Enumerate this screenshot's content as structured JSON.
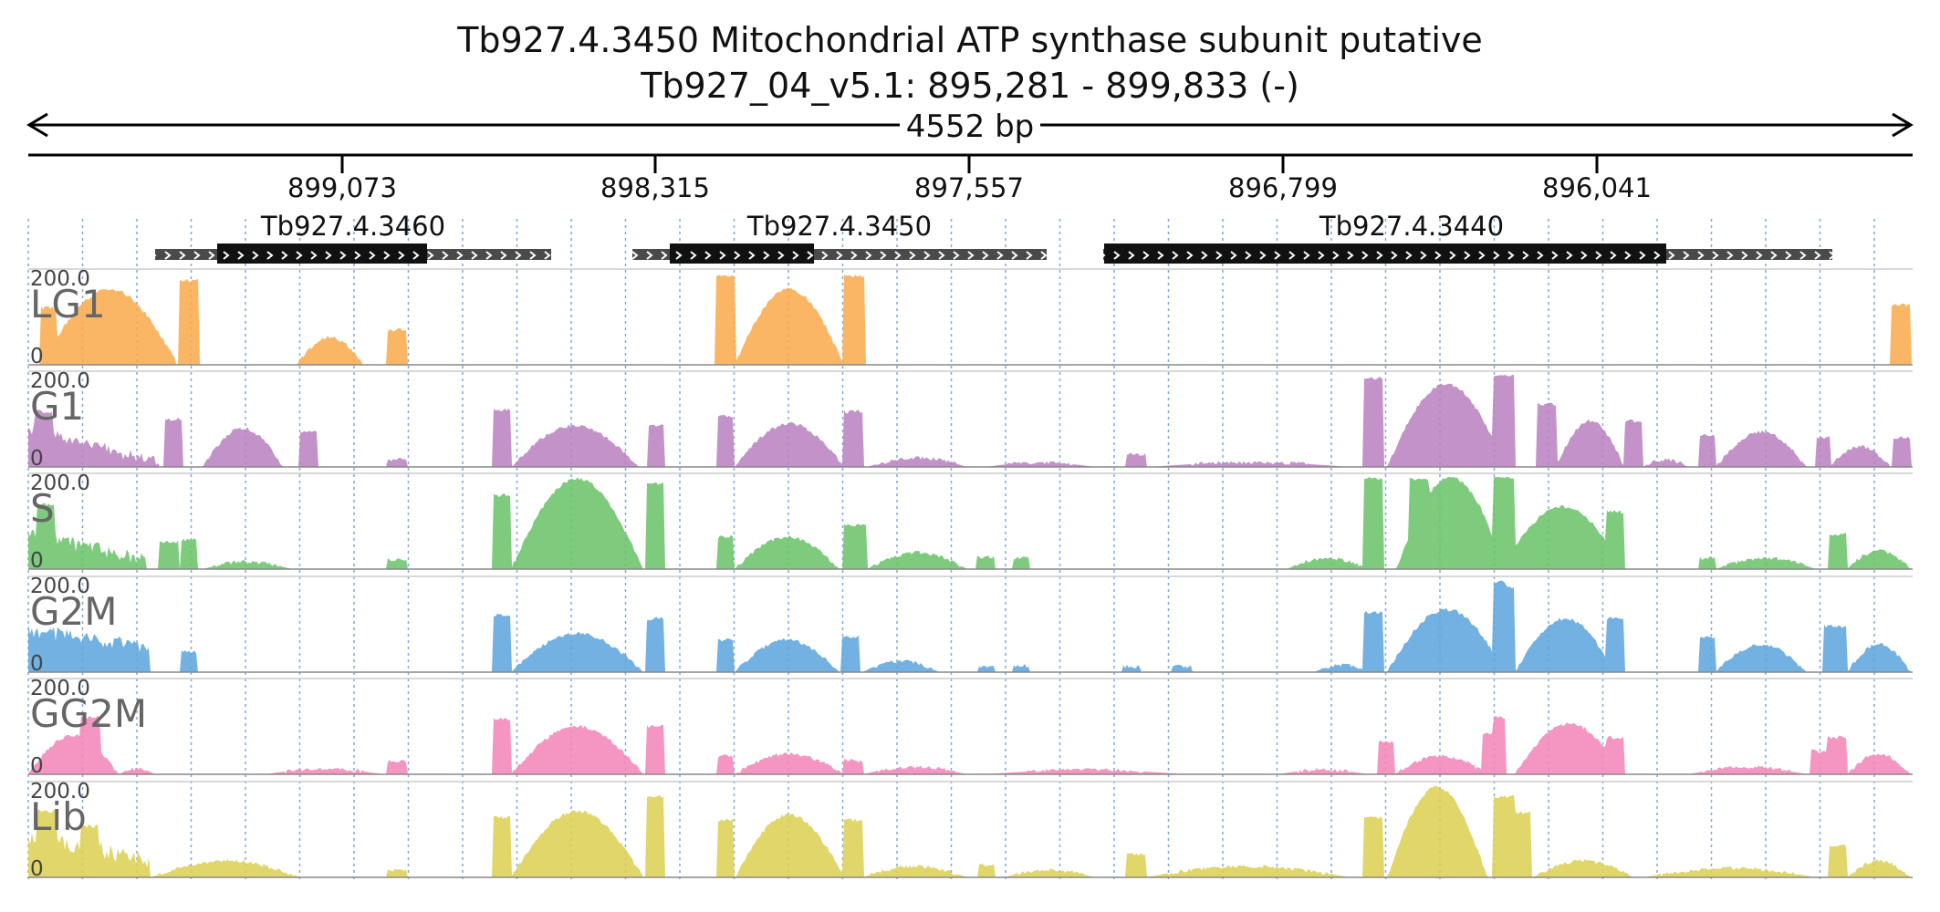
{
  "header": {
    "title": "Tb927.4.3450  Mitochondrial ATP synthase subunit  putative",
    "locus": "Tb927_04_v5.1: 895,281 - 899,833 (-)",
    "span_label": "4552 bp"
  },
  "ruler": {
    "ticks": [
      "899,073",
      "898,315",
      "897,557",
      "896,799",
      "896,041"
    ]
  },
  "genes": [
    {
      "name": "Tb927.4.3460"
    },
    {
      "name": "Tb927.4.3450"
    },
    {
      "name": "Tb927.4.3440"
    }
  ],
  "tracks": [
    {
      "name": "LG1",
      "max_label": "200.0",
      "min_label": "0",
      "color": "#f9ac4e"
    },
    {
      "name": "G1",
      "max_label": "200.0",
      "min_label": "0",
      "color": "#b983c0"
    },
    {
      "name": "S",
      "max_label": "200.0",
      "min_label": "0",
      "color": "#6cc46c"
    },
    {
      "name": "G2M",
      "max_label": "200.0",
      "min_label": "0",
      "color": "#5fa6dd"
    },
    {
      "name": "GG2M",
      "max_label": "200.0",
      "min_label": "0",
      "color": "#f287b8"
    },
    {
      "name": "Lib",
      "max_label": "200.0",
      "min_label": "0",
      "color": "#ddd054"
    }
  ],
  "colors": {
    "gene_thick": "#111111",
    "gene_thin": "#4a4a4a",
    "grid": "#7fa9e0",
    "axis": "#000000",
    "clip": "#c0392b"
  }
}
